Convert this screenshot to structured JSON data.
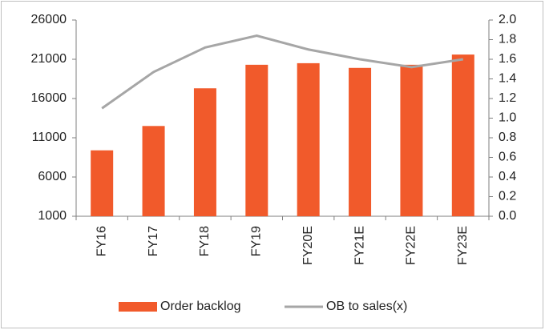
{
  "chart_data": {
    "type": "bar",
    "categories": [
      "FY16",
      "FY17",
      "FY18",
      "FY19",
      "FY20E",
      "FY21E",
      "FY22E",
      "FY23E"
    ],
    "series": [
      {
        "name": "Order backlog",
        "type": "bar",
        "color": "#f15a2b",
        "values": [
          9400,
          12500,
          17300,
          20300,
          20500,
          19900,
          20300,
          21600
        ]
      },
      {
        "name": "OB to sales(x)",
        "type": "line",
        "axis": "y2",
        "color": "#a6a6a6",
        "values": [
          1.1,
          1.47,
          1.72,
          1.84,
          1.7,
          1.6,
          1.52,
          1.6
        ]
      }
    ],
    "ylim": [
      1000,
      26000
    ],
    "yticks": [
      1000,
      6000,
      11000,
      16000,
      21000,
      26000
    ],
    "y2lim": [
      0,
      2
    ],
    "y2ticks": [
      {
        "value": 0,
        "label": "0.0"
      },
      0.2,
      0.4,
      0.6,
      0.8,
      {
        "value": 1,
        "label": "1.0"
      },
      1.2,
      1.4,
      1.6,
      1.8,
      {
        "value": 2,
        "label": "2.0"
      }
    ],
    "legend": "bottom"
  }
}
